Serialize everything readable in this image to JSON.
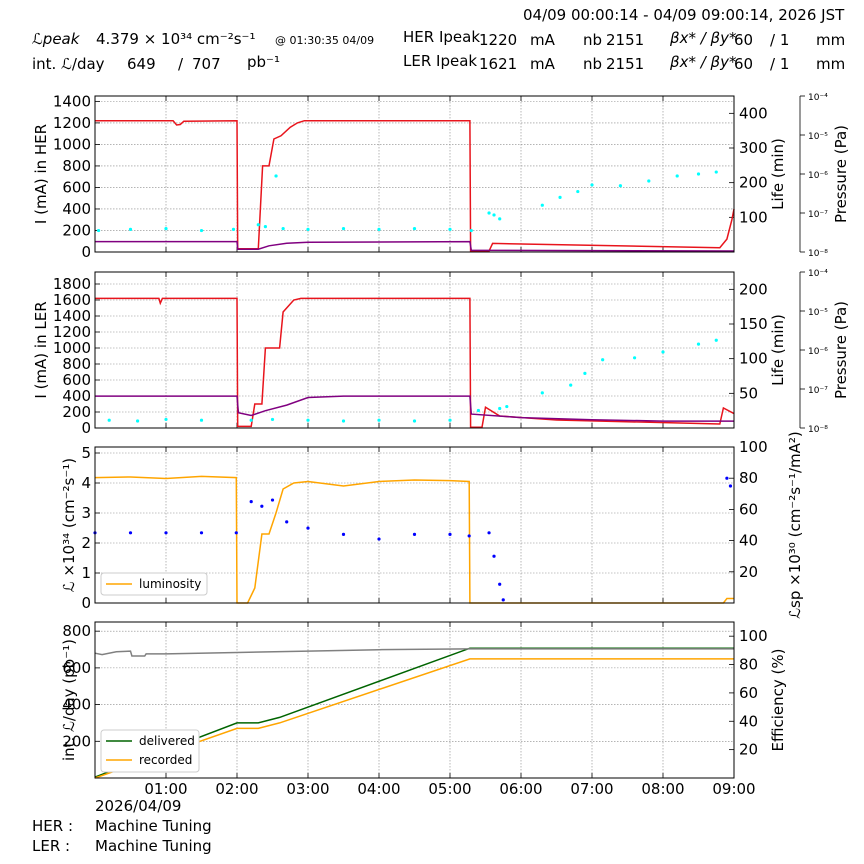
{
  "header": {
    "time_range": "04/09 00:00:14 - 04/09 09:00:14, 2026 JST",
    "l_peak_label": "ℒpeak",
    "l_peak_value": "4.379  × 10³⁴ cm⁻²s⁻¹",
    "l_peak_time": "@ 01:30:35 04/09",
    "int_l_label": "int. ℒ/day",
    "int_l_recorded": "649",
    "int_l_sep": "/",
    "int_l_delivered": "707",
    "int_l_unit": "pb⁻¹",
    "her_label": "HER Ipeak",
    "her_current": "1220",
    "ler_label": "LER Ipeak",
    "ler_current": "1621",
    "current_unit": "mA",
    "nb_label": "nb",
    "her_nb": "2151",
    "ler_nb": "2151",
    "beta_label": "βx* / βy*",
    "her_beta_x": "60",
    "her_beta_y": "/ 1",
    "ler_beta_x": "60",
    "ler_beta_y": "/ 1",
    "beta_unit": "mm"
  },
  "footer": {
    "date": "2026/04/09",
    "her_status_label": "HER :",
    "her_status": "Machine Tuning",
    "ler_status_label": "LER :",
    "ler_status": "Machine Tuning"
  },
  "colors": {
    "current": "#e8141c",
    "life": "#800080",
    "pressure": "#00ffff",
    "luminosity": "#ffa500",
    "specific": "#0000ff",
    "delivered": "#006400",
    "recorded": "#ffa500",
    "efficiency": "#808080",
    "grid": "#888888"
  },
  "chart_data": [
    {
      "id": "her",
      "type": "line",
      "xlabel": "",
      "x_ticks": [
        "01:00",
        "02:00",
        "03:00",
        "04:00",
        "05:00",
        "06:00",
        "07:00",
        "08:00",
        "09:00"
      ],
      "x_range_hours": [
        0,
        9
      ],
      "ylabel": "I (mA) in HER",
      "ylim": [
        0,
        1450
      ],
      "yticks": [
        0,
        200,
        400,
        600,
        800,
        1000,
        1200,
        1400
      ],
      "y2label": "Life (min)",
      "y2lim": [
        0,
        450
      ],
      "y2ticks": [
        100,
        200,
        300,
        400
      ],
      "y3label": "Pressure (Pa)",
      "y3ticks": [
        "10⁻⁴",
        "10⁻⁵",
        "10⁻⁶",
        "10⁻⁷",
        "10⁻⁸"
      ],
      "y3_exponents": [
        -4,
        -5,
        -6,
        -7,
        -8
      ],
      "series": [
        {
          "role": "current",
          "points": [
            [
              0,
              1220
            ],
            [
              1.1,
              1220
            ],
            [
              1.15,
              1180
            ],
            [
              1.2,
              1185
            ],
            [
              1.25,
              1215
            ],
            [
              2.0,
              1220
            ],
            [
              2.01,
              30
            ],
            [
              2.3,
              30
            ],
            [
              2.36,
              800
            ],
            [
              2.45,
              800
            ],
            [
              2.52,
              1050
            ],
            [
              2.62,
              1080
            ],
            [
              2.75,
              1160
            ],
            [
              2.85,
              1200
            ],
            [
              2.95,
              1220
            ],
            [
              5.28,
              1220
            ],
            [
              5.29,
              10
            ],
            [
              5.55,
              10
            ],
            [
              5.6,
              80
            ],
            [
              8.8,
              40
            ],
            [
              8.9,
              120
            ],
            [
              8.97,
              300
            ],
            [
              9,
              400
            ]
          ]
        },
        {
          "role": "life",
          "points": [
            [
              0,
              30
            ],
            [
              2.0,
              30
            ],
            [
              2.01,
              8
            ],
            [
              2.3,
              8
            ],
            [
              2.45,
              18
            ],
            [
              2.7,
              25
            ],
            [
              3.0,
              28
            ],
            [
              5.28,
              30
            ],
            [
              5.3,
              5
            ],
            [
              9,
              3
            ]
          ]
        },
        {
          "role": "pressure",
          "points": [
            [
              0.05,
              -7.45
            ],
            [
              0.5,
              -7.42
            ],
            [
              1.0,
              -7.4
            ],
            [
              1.5,
              -7.45
            ],
            [
              1.95,
              -7.42
            ],
            [
              2.3,
              -7.3
            ],
            [
              2.4,
              -7.35
            ],
            [
              2.55,
              -6.05
            ],
            [
              2.65,
              -7.4
            ],
            [
              3.0,
              -7.42
            ],
            [
              3.5,
              -7.4
            ],
            [
              4.0,
              -7.42
            ],
            [
              4.5,
              -7.4
            ],
            [
              5.0,
              -7.42
            ],
            [
              5.3,
              -7.45
            ],
            [
              5.55,
              -7.0
            ],
            [
              5.62,
              -7.05
            ],
            [
              5.7,
              -7.15
            ],
            [
              6.3,
              -6.8
            ],
            [
              6.55,
              -6.6
            ],
            [
              6.8,
              -6.45
            ],
            [
              7.0,
              -6.28
            ],
            [
              7.4,
              -6.3
            ],
            [
              7.8,
              -6.18
            ],
            [
              8.2,
              -6.05
            ],
            [
              8.5,
              -6.0
            ],
            [
              8.75,
              -5.95
            ]
          ]
        }
      ]
    },
    {
      "id": "ler",
      "type": "line",
      "xlabel": "",
      "x_ticks": [
        "01:00",
        "02:00",
        "03:00",
        "04:00",
        "05:00",
        "06:00",
        "07:00",
        "08:00",
        "09:00"
      ],
      "x_range_hours": [
        0,
        9
      ],
      "ylabel": "I (mA) in LER",
      "ylim": [
        0,
        1950
      ],
      "yticks": [
        0,
        200,
        400,
        600,
        800,
        1000,
        1200,
        1400,
        1600,
        1800
      ],
      "y2label": "Life (min)",
      "y2lim": [
        0,
        225
      ],
      "y2ticks": [
        50,
        100,
        150,
        200
      ],
      "y3label": "Pressure (Pa)",
      "y3ticks": [
        "10⁻⁴",
        "10⁻⁵",
        "10⁻⁶",
        "10⁻⁷",
        "10⁻⁸"
      ],
      "y3_exponents": [
        -4,
        -5,
        -6,
        -7,
        -8
      ],
      "series": [
        {
          "role": "current",
          "points": [
            [
              0,
              1620
            ],
            [
              0.9,
              1620
            ],
            [
              0.92,
              1560
            ],
            [
              0.95,
              1620
            ],
            [
              2.0,
              1620
            ],
            [
              2.01,
              20
            ],
            [
              2.2,
              20
            ],
            [
              2.25,
              300
            ],
            [
              2.35,
              300
            ],
            [
              2.4,
              1000
            ],
            [
              2.6,
              1000
            ],
            [
              2.65,
              1450
            ],
            [
              2.8,
              1600
            ],
            [
              2.9,
              1620
            ],
            [
              5.28,
              1620
            ],
            [
              5.29,
              10
            ],
            [
              5.45,
              10
            ],
            [
              5.5,
              260
            ],
            [
              5.7,
              150
            ],
            [
              6.5,
              100
            ],
            [
              8.8,
              50
            ],
            [
              8.85,
              250
            ],
            [
              9,
              180
            ]
          ]
        },
        {
          "role": "life",
          "points": [
            [
              0,
              46
            ],
            [
              2.0,
              46
            ],
            [
              2.02,
              22
            ],
            [
              2.2,
              18
            ],
            [
              2.4,
              25
            ],
            [
              2.7,
              33
            ],
            [
              3.0,
              44
            ],
            [
              3.5,
              46
            ],
            [
              5.28,
              46
            ],
            [
              5.3,
              20
            ],
            [
              6.0,
              15
            ],
            [
              7.0,
              12
            ],
            [
              8.0,
              10
            ],
            [
              9,
              10
            ]
          ]
        },
        {
          "role": "pressure",
          "points": [
            [
              0.2,
              -7.8
            ],
            [
              0.6,
              -7.82
            ],
            [
              1.0,
              -7.78
            ],
            [
              1.5,
              -7.8
            ],
            [
              2.2,
              -7.8
            ],
            [
              2.5,
              -7.78
            ],
            [
              3.0,
              -7.8
            ],
            [
              3.5,
              -7.82
            ],
            [
              4.0,
              -7.8
            ],
            [
              4.5,
              -7.82
            ],
            [
              5.0,
              -7.8
            ],
            [
              5.4,
              -7.55
            ],
            [
              5.7,
              -7.5
            ],
            [
              5.8,
              -7.45
            ],
            [
              6.3,
              -7.1
            ],
            [
              6.7,
              -6.9
            ],
            [
              6.9,
              -6.6
            ],
            [
              7.15,
              -6.25
            ],
            [
              7.6,
              -6.2
            ],
            [
              8.0,
              -6.05
            ],
            [
              8.5,
              -5.85
            ],
            [
              8.75,
              -5.75
            ]
          ]
        }
      ]
    },
    {
      "id": "lumi",
      "type": "line",
      "xlabel": "",
      "x_ticks": [
        "01:00",
        "02:00",
        "03:00",
        "04:00",
        "05:00",
        "06:00",
        "07:00",
        "08:00",
        "09:00"
      ],
      "x_range_hours": [
        0,
        9
      ],
      "ylabel": "ℒ ×10³⁴ (cm⁻²s⁻¹)",
      "ylim": [
        0,
        5.2
      ],
      "yticks": [
        0,
        1,
        2,
        3,
        4,
        5
      ],
      "y2label": "ℒsp ×10³⁰ (cm⁻²s⁻¹/mA²)",
      "y2lim": [
        0,
        100
      ],
      "y2ticks": [
        20,
        40,
        60,
        80,
        100
      ],
      "legend": [
        {
          "label": "luminosity",
          "role": "luminosity"
        }
      ],
      "legend_loc": "lower left",
      "series": [
        {
          "name": "luminosity",
          "role": "luminosity",
          "points": [
            [
              0,
              4.18
            ],
            [
              0.5,
              4.2
            ],
            [
              1.0,
              4.15
            ],
            [
              1.5,
              4.22
            ],
            [
              1.99,
              4.18
            ],
            [
              2.0,
              0.0
            ],
            [
              2.15,
              0.0
            ],
            [
              2.25,
              0.5
            ],
            [
              2.35,
              2.3
            ],
            [
              2.45,
              2.3
            ],
            [
              2.55,
              3.0
            ],
            [
              2.65,
              3.8
            ],
            [
              2.8,
              4.0
            ],
            [
              3.0,
              4.05
            ],
            [
              3.5,
              3.9
            ],
            [
              4.0,
              4.05
            ],
            [
              4.5,
              4.1
            ],
            [
              5.0,
              4.08
            ],
            [
              5.27,
              4.05
            ],
            [
              5.28,
              0.0
            ],
            [
              8.85,
              0.0
            ],
            [
              8.9,
              0.15
            ],
            [
              9,
              0.15
            ]
          ]
        },
        {
          "role": "specific",
          "points": [
            [
              0,
              45
            ],
            [
              0.5,
              45
            ],
            [
              1.0,
              45
            ],
            [
              1.5,
              45
            ],
            [
              1.99,
              45
            ],
            [
              2.2,
              65
            ],
            [
              2.35,
              62
            ],
            [
              2.5,
              66
            ],
            [
              2.7,
              52
            ],
            [
              3.0,
              48
            ],
            [
              3.5,
              44
            ],
            [
              4.0,
              41
            ],
            [
              4.5,
              44
            ],
            [
              5.0,
              44
            ],
            [
              5.27,
              43
            ],
            [
              5.55,
              45
            ],
            [
              5.62,
              30
            ],
            [
              5.7,
              12
            ],
            [
              5.75,
              2
            ],
            [
              8.9,
              80
            ],
            [
              8.95,
              75
            ]
          ]
        }
      ]
    },
    {
      "id": "integrated",
      "type": "line",
      "xlabel": "",
      "x_ticks": [
        "01:00",
        "02:00",
        "03:00",
        "04:00",
        "05:00",
        "06:00",
        "07:00",
        "08:00",
        "09:00"
      ],
      "x_range_hours": [
        0,
        9
      ],
      "ylabel": "int. ℒ/day (pb⁻¹)",
      "ylim": [
        0,
        850
      ],
      "yticks": [
        200,
        400,
        600,
        800
      ],
      "y2label": "Efficiency (%)",
      "y2lim": [
        0,
        110
      ],
      "y2ticks": [
        20,
        40,
        60,
        80,
        100
      ],
      "legend": [
        {
          "label": "delivered",
          "role": "delivered"
        },
        {
          "label": "recorded",
          "role": "recorded"
        }
      ],
      "legend_loc": "lower left",
      "series": [
        {
          "name": "delivered",
          "role": "delivered",
          "points": [
            [
              0,
              5
            ],
            [
              2.0,
              300
            ],
            [
              2.3,
              300
            ],
            [
              2.6,
              330
            ],
            [
              5.28,
              707
            ],
            [
              9,
              707
            ]
          ]
        },
        {
          "name": "recorded",
          "role": "recorded",
          "points": [
            [
              0,
              0
            ],
            [
              2.0,
              270
            ],
            [
              2.3,
              270
            ],
            [
              2.6,
              300
            ],
            [
              5.28,
              649
            ],
            [
              9,
              649
            ]
          ]
        },
        {
          "role": "efficiency",
          "points": [
            [
              0,
              88
            ],
            [
              0.1,
              87
            ],
            [
              0.3,
              89
            ],
            [
              0.5,
              89.5
            ],
            [
              0.52,
              86
            ],
            [
              0.7,
              86
            ],
            [
              0.72,
              87.5
            ],
            [
              1.0,
              87.5
            ],
            [
              2.0,
              88.5
            ],
            [
              3.0,
              89.5
            ],
            [
              4.0,
              90.5
            ],
            [
              5.28,
              91
            ],
            [
              6,
              91
            ],
            [
              9,
              91
            ]
          ]
        }
      ]
    }
  ]
}
